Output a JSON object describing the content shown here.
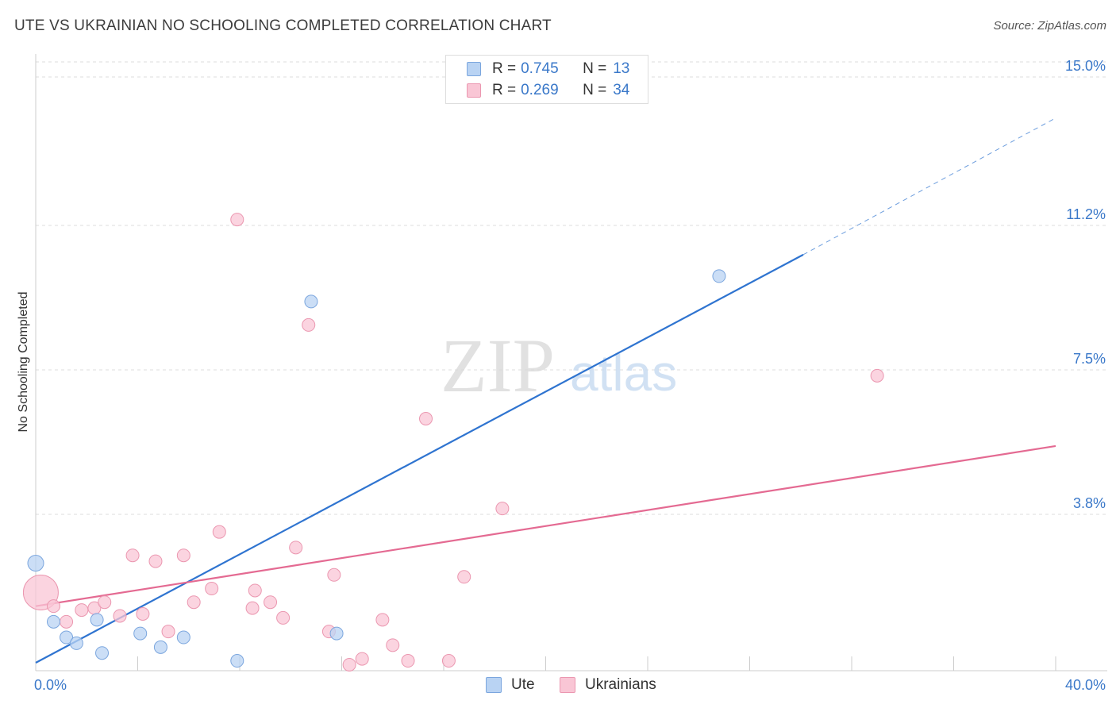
{
  "title": "UTE VS UKRAINIAN NO SCHOOLING COMPLETED CORRELATION CHART",
  "source": "Source: ZipAtlas.com",
  "watermark": {
    "zip": "ZIP",
    "atlas": "atlas"
  },
  "colors": {
    "ute_fill": "#b9d3f3",
    "ute_stroke": "#7ba6de",
    "ute_line": "#2f74d0",
    "ukr_fill": "#f9c6d5",
    "ukr_stroke": "#eb97b0",
    "ukr_line": "#e46a92",
    "grid": "#dddddd",
    "tick_text": "#3a78c9"
  },
  "legend": {
    "r_label": "R =",
    "n_label": "N =",
    "series": [
      {
        "r": "0.745",
        "n": "13"
      },
      {
        "r": "0.269",
        "n": "34"
      }
    ]
  },
  "bottom_legend": [
    "Ute",
    "Ukrainians"
  ],
  "chart_data": {
    "type": "scatter",
    "title": "UTE VS UKRAINIAN NO SCHOOLING COMPLETED CORRELATION CHART",
    "xlabel": "",
    "ylabel": "No Schooling Completed",
    "xlim": [
      0,
      40
    ],
    "ylim": [
      0,
      15.5
    ],
    "x_tick_labels": [
      {
        "value": 0,
        "label": "0.0%"
      },
      {
        "value": 40,
        "label": "40.0%"
      }
    ],
    "y_ticks": [
      {
        "value": 3.8,
        "label": "3.8%"
      },
      {
        "value": 7.5,
        "label": "7.5%"
      },
      {
        "value": 11.2,
        "label": "11.2%"
      },
      {
        "value": 15.0,
        "label": "15.0%"
      }
    ],
    "grid": true,
    "series": [
      {
        "name": "Ute",
        "R": 0.745,
        "N": 13,
        "points": [
          {
            "x": 0.0,
            "y": 2.55,
            "size": 2
          },
          {
            "x": 0.7,
            "y": 1.05
          },
          {
            "x": 1.2,
            "y": 0.65
          },
          {
            "x": 1.6,
            "y": 0.5
          },
          {
            "x": 2.4,
            "y": 1.1
          },
          {
            "x": 2.6,
            "y": 0.25
          },
          {
            "x": 4.1,
            "y": 0.75
          },
          {
            "x": 4.9,
            "y": 0.4
          },
          {
            "x": 5.8,
            "y": 0.65
          },
          {
            "x": 7.9,
            "y": 0.05
          },
          {
            "x": 10.8,
            "y": 9.25
          },
          {
            "x": 11.8,
            "y": 0.75
          },
          {
            "x": 26.8,
            "y": 9.9
          }
        ],
        "trend": {
          "x0": 0,
          "y0": 0.0,
          "x1": 30.1,
          "y1": 10.45,
          "dash_to_x": 40,
          "dash_to_y": 13.95
        }
      },
      {
        "name": "Ukrainians",
        "R": 0.269,
        "N": 34,
        "points": [
          {
            "x": 0.2,
            "y": 1.8,
            "size": 3
          },
          {
            "x": 0.7,
            "y": 1.45
          },
          {
            "x": 1.2,
            "y": 1.05
          },
          {
            "x": 1.8,
            "y": 1.35
          },
          {
            "x": 2.3,
            "y": 1.4
          },
          {
            "x": 2.7,
            "y": 1.55
          },
          {
            "x": 3.3,
            "y": 1.2
          },
          {
            "x": 3.8,
            "y": 2.75
          },
          {
            "x": 4.2,
            "y": 1.25
          },
          {
            "x": 4.7,
            "y": 2.6
          },
          {
            "x": 5.2,
            "y": 0.8
          },
          {
            "x": 5.8,
            "y": 2.75
          },
          {
            "x": 6.2,
            "y": 1.55
          },
          {
            "x": 6.9,
            "y": 1.9
          },
          {
            "x": 7.2,
            "y": 3.35
          },
          {
            "x": 7.9,
            "y": 11.35
          },
          {
            "x": 8.5,
            "y": 1.4
          },
          {
            "x": 8.6,
            "y": 1.85
          },
          {
            "x": 9.2,
            "y": 1.55
          },
          {
            "x": 9.7,
            "y": 1.15
          },
          {
            "x": 10.2,
            "y": 2.95
          },
          {
            "x": 10.7,
            "y": 8.65
          },
          {
            "x": 11.5,
            "y": 0.8
          },
          {
            "x": 11.7,
            "y": 2.25
          },
          {
            "x": 12.3,
            "y": -0.05
          },
          {
            "x": 12.8,
            "y": 0.1
          },
          {
            "x": 13.6,
            "y": 1.1
          },
          {
            "x": 14.0,
            "y": 0.45
          },
          {
            "x": 14.6,
            "y": 0.05
          },
          {
            "x": 15.3,
            "y": 6.25
          },
          {
            "x": 16.2,
            "y": 0.05
          },
          {
            "x": 16.8,
            "y": 2.2
          },
          {
            "x": 18.3,
            "y": 3.95
          },
          {
            "x": 33.0,
            "y": 7.35
          }
        ],
        "trend": {
          "x0": 0,
          "y0": 1.45,
          "x1": 40,
          "y1": 5.55
        }
      }
    ]
  }
}
